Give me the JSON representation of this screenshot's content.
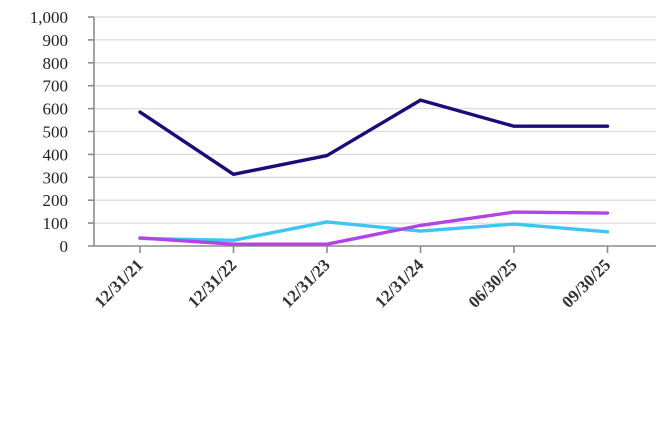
{
  "chart_data": {
    "type": "line",
    "title": "",
    "xlabel": "",
    "ylabel": "",
    "categories": [
      "12/31/21",
      "12/31/22",
      "12/31/23",
      "12/31/24",
      "06/30/25",
      "09/30/25"
    ],
    "ylim": [
      0,
      1000
    ],
    "yticks": [
      "0",
      "100",
      "200",
      "300",
      "400",
      "500",
      "600",
      "700",
      "800",
      "900",
      "1,000"
    ],
    "grid": true,
    "legend": "none",
    "series": [
      {
        "color": "#1f0a7a",
        "values": [
          585,
          313,
          395,
          637,
          523,
          523
        ]
      },
      {
        "color": "#3ec6f0",
        "values": [
          33,
          25,
          105,
          65,
          96,
          62
        ]
      },
      {
        "color": "#b044e6",
        "values": [
          35,
          8,
          8,
          90,
          148,
          144
        ]
      }
    ]
  }
}
